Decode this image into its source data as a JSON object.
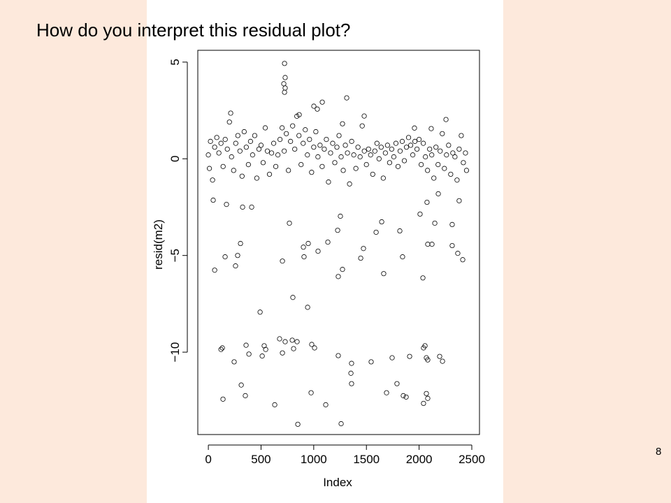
{
  "slide": {
    "title": "How do you interpret this residual plot?",
    "page_number": "8"
  },
  "chart_data": {
    "type": "scatter",
    "x_label": "Index",
    "y_label": "resid(m2)",
    "xlim": [
      -100,
      2573
    ],
    "ylim": [
      -14.26,
      5.61
    ],
    "xticks": [
      0,
      500,
      1000,
      1500,
      2000,
      2500
    ],
    "yticks": [
      {
        "value": -10,
        "label": "−10"
      },
      {
        "value": -5,
        "label": "−5"
      },
      0,
      5
    ],
    "color": "#000000",
    "x": [
      0,
      10,
      20,
      40,
      60,
      80,
      100,
      120,
      140,
      160,
      180,
      200,
      220,
      240,
      260,
      280,
      300,
      320,
      340,
      360,
      380,
      400,
      420,
      440,
      460,
      480,
      500,
      520,
      540,
      560,
      580,
      600,
      620,
      640,
      660,
      680,
      700,
      720,
      740,
      760,
      780,
      800,
      820,
      840,
      860,
      880,
      900,
      920,
      940,
      960,
      980,
      1000,
      1020,
      1040,
      1060,
      1080,
      1100,
      1120,
      1140,
      1160,
      1180,
      1200,
      1220,
      1240,
      1260,
      1280,
      1300,
      1320,
      1340,
      1360,
      1380,
      1400,
      1420,
      1440,
      1460,
      1480,
      1500,
      1520,
      1540,
      1560,
      1580,
      1600,
      1620,
      1640,
      1660,
      1680,
      1700,
      1720,
      1740,
      1760,
      1780,
      1800,
      1820,
      1840,
      1860,
      1880,
      1900,
      1920,
      1940,
      1960,
      1980,
      2000,
      2020,
      2040,
      2060,
      2080,
      2100,
      2120,
      2140,
      2160,
      2180,
      2200,
      2220,
      2240,
      2260,
      2280,
      2300,
      2320,
      2340,
      2360,
      2380,
      2400,
      2420,
      2440,
      2450,
      60,
      120,
      133,
      139,
      159,
      245,
      312,
      351,
      358,
      385,
      258,
      278,
      305,
      491,
      511,
      530,
      544,
      630,
      676,
      703,
      703,
      729,
      796,
      809,
      842,
      849,
      802,
      942,
      981,
      1008,
      975,
      1114,
      908,
      902,
      1134,
      1041,
      1233,
      1260,
      1273,
      1233,
      1359,
      1353,
      1359,
      1472,
      1446,
      1545,
      1664,
      1691,
      1744,
      1790,
      1850,
      1877,
      1843,
      1910,
      2036,
      2042,
      2056,
      2069,
      2082,
      2042,
      2082,
      2069,
      2195,
      2222,
      2082,
      2122,
      2314,
      2367,
      2414,
      2314,
      2380,
      2182,
      2149,
      2075,
      2009,
      1817,
      1645,
      1592,
      1253,
      1227,
      948,
      769,
      411,
      325,
      46,
      172,
      723,
      729,
      729,
      723,
      716,
      1313,
      212,
      1081,
      1001,
      1034,
      1479,
      2255,
      2115,
      1956,
      862,
      1273
    ],
    "values": [
      0.2,
      -0.5,
      0.9,
      -1.1,
      0.6,
      1.1,
      0.3,
      0.8,
      -0.4,
      1.0,
      0.5,
      1.9,
      0.1,
      -0.6,
      0.8,
      1.2,
      0.4,
      -0.9,
      1.4,
      0.6,
      -0.3,
      0.9,
      0.2,
      1.2,
      -1.0,
      0.5,
      0.7,
      -0.2,
      1.6,
      0.4,
      -0.8,
      0.3,
      0.8,
      -0.4,
      0.2,
      1.0,
      1.6,
      0.4,
      1.3,
      -0.6,
      0.9,
      1.7,
      0.5,
      2.2,
      1.2,
      -0.3,
      0.8,
      1.5,
      0.2,
      1.0,
      -0.7,
      0.6,
      1.4,
      0.1,
      0.7,
      -0.4,
      0.5,
      1.0,
      -1.2,
      0.3,
      0.8,
      -0.2,
      0.6,
      1.2,
      0.1,
      -0.6,
      0.7,
      0.3,
      -1.3,
      0.9,
      0.2,
      -0.5,
      0.6,
      0.1,
      1.7,
      0.4,
      -0.3,
      0.5,
      0.2,
      -0.8,
      0.4,
      0.8,
      0.0,
      0.6,
      -1.0,
      0.3,
      0.7,
      -0.2,
      0.5,
      0.1,
      0.8,
      -0.4,
      0.4,
      0.9,
      -0.1,
      0.6,
      1.1,
      0.7,
      0.2,
      0.9,
      0.5,
      1.0,
      -0.3,
      0.8,
      0.1,
      -0.6,
      0.5,
      0.2,
      -1.0,
      0.6,
      -0.3,
      0.4,
      1.3,
      -0.5,
      0.2,
      0.7,
      -0.8,
      0.3,
      0.1,
      -1.1,
      0.5,
      1.2,
      -0.2,
      0.3,
      -0.6,
      -5.76,
      -9.86,
      -9.78,
      -12.43,
      -5.07,
      -10.5,
      -11.7,
      -12.25,
      -9.64,
      -10.1,
      -5.54,
      -5.0,
      -4.38,
      -7.93,
      -10.2,
      -9.67,
      -9.86,
      -12.72,
      -9.31,
      -10.04,
      -5.29,
      -9.46,
      -9.38,
      -9.82,
      -9.46,
      -13.73,
      -7.17,
      -7.68,
      -9.6,
      -9.78,
      -12.1,
      -12.72,
      -5.07,
      -4.57,
      -4.31,
      -4.78,
      -10.18,
      -13.7,
      -5.72,
      -6.09,
      -10.58,
      -11.09,
      -11.63,
      -4.64,
      -5.14,
      -10.5,
      -5.94,
      -12.1,
      -10.29,
      -11.63,
      -12.25,
      -12.32,
      -5.07,
      -10.22,
      -6.16,
      -9.78,
      -9.67,
      -10.29,
      -10.4,
      -12.65,
      -12.39,
      -12.14,
      -10.22,
      -10.47,
      -4.42,
      -4.42,
      -4.49,
      -4.89,
      -5.22,
      -3.4,
      -2.17,
      -1.81,
      -3.33,
      -2.25,
      -2.86,
      -3.73,
      -3.26,
      -3.8,
      -2.97,
      -3.7,
      -4.38,
      -3.33,
      -2.5,
      -2.5,
      -2.14,
      -2.36,
      4.93,
      4.2,
      3.66,
      3.44,
      3.88,
      3.15,
      2.36,
      2.93,
      2.72,
      2.57,
      2.21,
      2.03,
      1.56,
      1.59,
      2.28,
      1.81
    ]
  }
}
